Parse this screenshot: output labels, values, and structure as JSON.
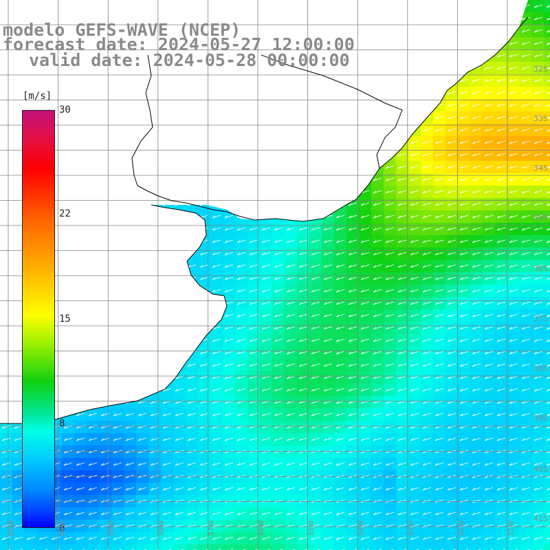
{
  "title": {
    "line1": "modelo GEFS-WAVE (NCEP)",
    "line2": "forecast date: 2024-05-27 12:00:00",
    "line3": "valid date: 2024-05-28 00:00:00"
  },
  "colorbar": {
    "unit": "[m/s]",
    "ticks": [
      "30",
      "22",
      "15",
      "8",
      "0"
    ],
    "tick_values": [
      30,
      22,
      15,
      8,
      0
    ],
    "range": [
      0,
      30
    ],
    "colors": [
      "#0000ff",
      "#00c8ff",
      "#00ffe8",
      "#10d010",
      "#ffff00",
      "#ff6a00",
      "#ff0000",
      "#c2117a"
    ]
  },
  "grid": {
    "lat_labels": [
      "32S",
      "33S",
      "34S",
      "35S",
      "36S",
      "37S",
      "38S",
      "39S",
      "40S",
      "41S"
    ],
    "lon_labels": [
      "61W",
      "60W",
      "59W",
      "58W",
      "57W",
      "56W",
      "55W",
      "54W",
      "53W",
      "52W",
      "51W"
    ]
  },
  "map": {
    "land_color": "#ffffff",
    "coastline_color": "#000000",
    "gridline_color": "#808080",
    "wind_arrow_color": "#ffffff"
  }
}
